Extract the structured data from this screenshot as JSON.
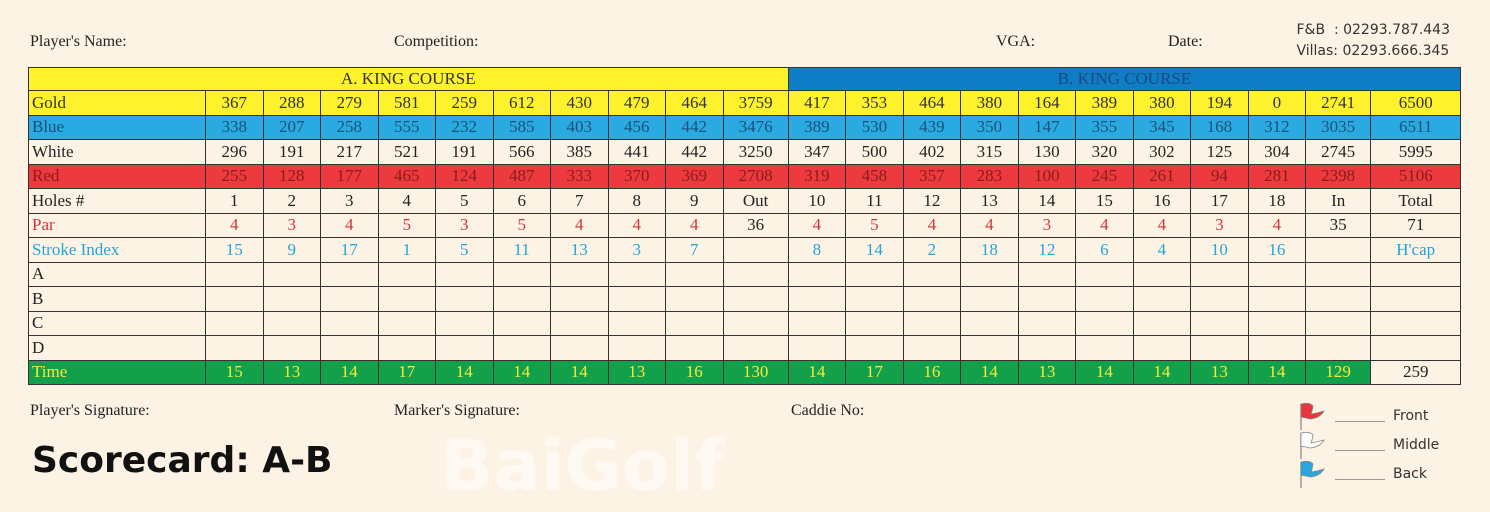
{
  "header": {
    "players_name": "Player's Name:",
    "competition": "Competition:",
    "vga": "VGA:",
    "date": "Date:",
    "fb": "F&B  : 02293.787.443",
    "villas": "Villas: 02293.666.345"
  },
  "courses": {
    "a": "A. KING COURSE",
    "b": "B. KING COURSE"
  },
  "rows": [
    {
      "cls": "gold",
      "label": "Gold",
      "cells": [
        "367",
        "288",
        "279",
        "581",
        "259",
        "612",
        "430",
        "479",
        "464",
        "3759",
        "417",
        "353",
        "464",
        "380",
        "164",
        "389",
        "380",
        "194",
        "0",
        "2741",
        "6500"
      ]
    },
    {
      "cls": "blue",
      "label": "Blue",
      "cells": [
        "338",
        "207",
        "258",
        "555",
        "232",
        "585",
        "403",
        "456",
        "442",
        "3476",
        "389",
        "530",
        "439",
        "350",
        "147",
        "355",
        "345",
        "168",
        "312",
        "3035",
        "6511"
      ]
    },
    {
      "cls": "white",
      "label": "White",
      "cells": [
        "296",
        "191",
        "217",
        "521",
        "191",
        "566",
        "385",
        "441",
        "442",
        "3250",
        "347",
        "500",
        "402",
        "315",
        "130",
        "320",
        "302",
        "125",
        "304",
        "2745",
        "5995"
      ]
    },
    {
      "cls": "red",
      "label": "Red",
      "cells": [
        "255",
        "128",
        "177",
        "465",
        "124",
        "487",
        "333",
        "370",
        "369",
        "2708",
        "319",
        "458",
        "357",
        "283",
        "100",
        "245",
        "261",
        "94",
        "281",
        "2398",
        "5106"
      ]
    },
    {
      "cls": "holes",
      "label": "Holes #",
      "cells": [
        "1",
        "2",
        "3",
        "4",
        "5",
        "6",
        "7",
        "8",
        "9",
        "Out",
        "10",
        "11",
        "12",
        "13",
        "14",
        "15",
        "16",
        "17",
        "18",
        "In",
        "Total"
      ]
    },
    {
      "cls": "par",
      "label": "Par",
      "cells": [
        "4",
        "3",
        "4",
        "5",
        "3",
        "5",
        "4",
        "4",
        "4",
        "36",
        "4",
        "5",
        "4",
        "4",
        "3",
        "4",
        "4",
        "3",
        "4",
        "35",
        "71"
      ]
    },
    {
      "cls": "si",
      "label": "Stroke Index",
      "cells": [
        "15",
        "9",
        "17",
        "1",
        "5",
        "11",
        "13",
        "3",
        "7",
        "",
        "8",
        "14",
        "2",
        "18",
        "12",
        "6",
        "4",
        "10",
        "16",
        "",
        "H'cap"
      ]
    },
    {
      "cls": "blank",
      "label": "A",
      "cells": [
        "",
        "",
        "",
        "",
        "",
        "",
        "",
        "",
        "",
        "",
        "",
        "",
        "",
        "",
        "",
        "",
        "",
        "",
        "",
        "",
        ""
      ]
    },
    {
      "cls": "blank",
      "label": "B",
      "cells": [
        "",
        "",
        "",
        "",
        "",
        "",
        "",
        "",
        "",
        "",
        "",
        "",
        "",
        "",
        "",
        "",
        "",
        "",
        "",
        "",
        ""
      ]
    },
    {
      "cls": "blank",
      "label": "C",
      "cells": [
        "",
        "",
        "",
        "",
        "",
        "",
        "",
        "",
        "",
        "",
        "",
        "",
        "",
        "",
        "",
        "",
        "",
        "",
        "",
        "",
        ""
      ]
    },
    {
      "cls": "blank",
      "label": "D",
      "cells": [
        "",
        "",
        "",
        "",
        "",
        "",
        "",
        "",
        "",
        "",
        "",
        "",
        "",
        "",
        "",
        "",
        "",
        "",
        "",
        "",
        ""
      ]
    },
    {
      "cls": "time",
      "label": "Time",
      "cells": [
        "15",
        "13",
        "14",
        "17",
        "14",
        "14",
        "14",
        "13",
        "16",
        "130",
        "14",
        "17",
        "16",
        "14",
        "13",
        "14",
        "14",
        "13",
        "14",
        "129",
        "259"
      ]
    }
  ],
  "footer": {
    "player_sig": "Player's Signature:",
    "marker_sig": "Marker's Signature:",
    "caddie": "Caddie No:"
  },
  "legend": [
    {
      "label": "Front",
      "color": "#e8373c"
    },
    {
      "label": "Middle",
      "color": "#ffffff"
    },
    {
      "label": "Back",
      "color": "#2aa6df"
    }
  ],
  "title": "Scorecard: A-B",
  "watermark": "BaiGolf"
}
